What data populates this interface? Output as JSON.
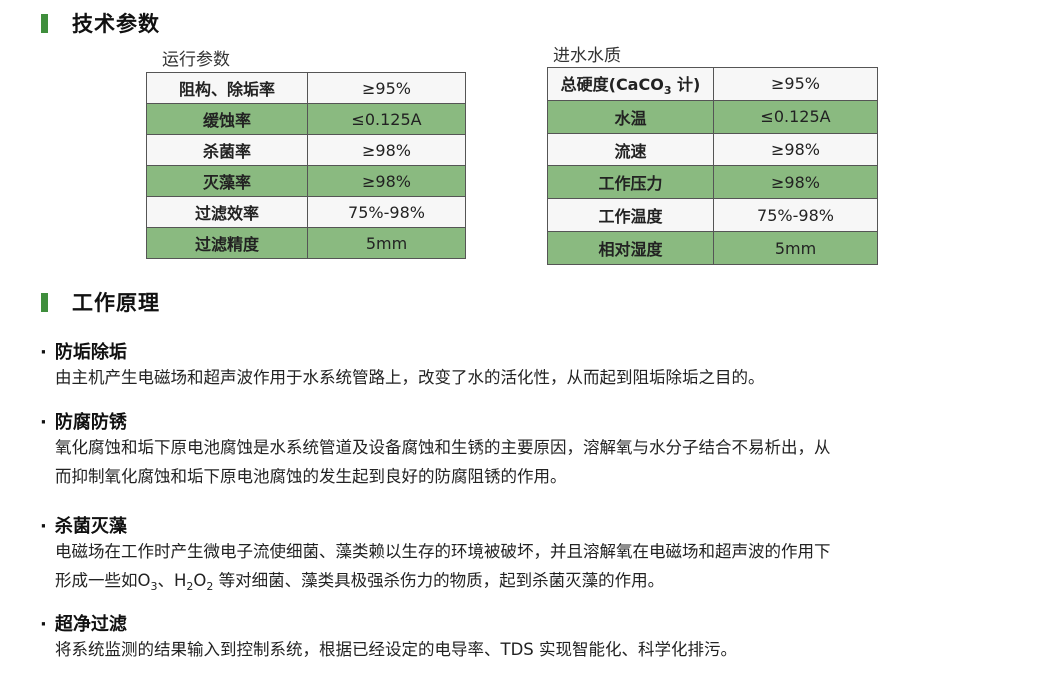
{
  "section1": {
    "title": "技术参数"
  },
  "table1": {
    "caption": "运行参数",
    "rows": [
      {
        "k": "阻构、除垢率",
        "v": "≥95%"
      },
      {
        "k": "缓蚀率",
        "v": "≤0.125A"
      },
      {
        "k": "杀菌率",
        "v": "≥98%"
      },
      {
        "k": "灭藻率",
        "v": "≥98%"
      },
      {
        "k": "过滤效率",
        "v": "75%-98%"
      },
      {
        "k": "过滤精度",
        "v": "5mm"
      }
    ]
  },
  "table2": {
    "caption": "进水水质",
    "rows": [
      {
        "k": "总硬度(CaCO3 计)",
        "v": "≥95%"
      },
      {
        "k": "水温",
        "v": "≤0.125A"
      },
      {
        "k": "流速",
        "v": "≥98%"
      },
      {
        "k": "工作压力",
        "v": "≥98%"
      },
      {
        "k": "工作温度",
        "v": "75%-98%"
      },
      {
        "k": "相对湿度",
        "v": "5mm"
      }
    ]
  },
  "section2": {
    "title": "工作原理"
  },
  "colors": {
    "accent": "#3f8e3c",
    "row_green": "#8aba80",
    "row_light": "#f7f7f7"
  },
  "items": [
    {
      "title": "防垢除垢",
      "lines": [
        "由主机产生电磁场和超声波作用于水系统管路上，改变了水的活化性，从而起到阻垢除垢之目的。"
      ]
    },
    {
      "title": "防腐防锈",
      "lines": [
        "氧化腐蚀和垢下原电池腐蚀是水系统管道及设备腐蚀和生锈的主要原因，溶解氧与水分子结合不易析出，从",
        "而抑制氧化腐蚀和垢下原电池腐蚀的发生起到良好的防腐阻锈的作用。"
      ]
    },
    {
      "title": "杀菌灭藻",
      "lines": [
        "电磁场在工作时产生微电子流使细菌、藻类赖以生存的环境被破坏，并且溶解氧在电磁场和超声波的作用下",
        "形成一些如O3、H2O2 等对细菌、藻类具极强杀伤力的物质，起到杀菌灭藻的作用。"
      ]
    },
    {
      "title": "超净过滤",
      "lines": [
        "将系统监测的结果输入到控制系统，根据已经设定的电导率、TDS 实现智能化、科学化排污。"
      ]
    }
  ]
}
